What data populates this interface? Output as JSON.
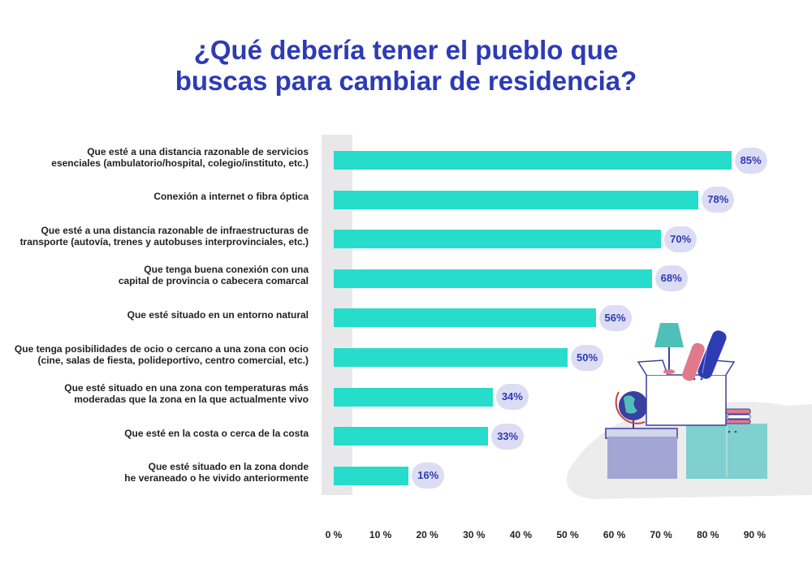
{
  "title_lines": [
    "¿Qué debería tener el pueblo que",
    "buscas para cambiar de residencia?"
  ],
  "chart_data": {
    "type": "bar",
    "orientation": "horizontal",
    "title": "¿Qué debería tener el pueblo que buscas para cambiar de residencia?",
    "categories": [
      [
        "Que esté a una distancia razonable de servicios",
        "esenciales (ambulatorio/hospital, colegio/instituto, etc.)"
      ],
      [
        "Conexión a internet o fibra óptica"
      ],
      [
        "Que esté a una distancia razonable de infraestructuras de",
        "transporte (autovía, trenes y autobuses interprovinciales, etc.)"
      ],
      [
        "Que tenga buena conexión con una",
        "capital de provincia o cabecera comarcal"
      ],
      [
        "Que esté situado en un entorno natural"
      ],
      [
        "Que tenga posibilidades de ocio o cercano a una zona con ocio",
        "(cine, salas de fiesta, polideportivo, centro comercial, etc.)"
      ],
      [
        "Que esté situado en una zona con temperaturas más",
        "moderadas que la zona en la que actualmente vivo"
      ],
      [
        "Que esté en la costa o cerca de la costa"
      ],
      [
        "Que esté situado en la zona donde",
        "he veraneado o he vivido anteriormente"
      ]
    ],
    "values": [
      85,
      78,
      70,
      68,
      56,
      50,
      34,
      33,
      16
    ],
    "value_labels": [
      "85%",
      "78%",
      "70%",
      "68%",
      "56%",
      "50%",
      "34%",
      "33%",
      "16%"
    ],
    "xlim": [
      0,
      90
    ],
    "xticks": [
      "0 %",
      "10 %",
      "20 %",
      "30 %",
      "40 %",
      "50 %",
      "60 %",
      "70 %",
      "80 %",
      "90 %"
    ],
    "xlabel": "",
    "ylabel": "",
    "grid": false,
    "legend": "none",
    "colors": {
      "bar": "#26dccb",
      "label_bubble": "#dcdcf4",
      "label_text": "#2d3bb5",
      "title": "#2d3bb5"
    }
  },
  "illustration": {
    "name": "furniture-and-moving-box",
    "colors": {
      "cabinet_left": "#a3a5d4",
      "cabinet_right": "#7fd0cf",
      "box": "#ffffff",
      "outline": "#3b3f9e",
      "lamp": "#4fc0b8",
      "floor": "#ececec"
    }
  }
}
